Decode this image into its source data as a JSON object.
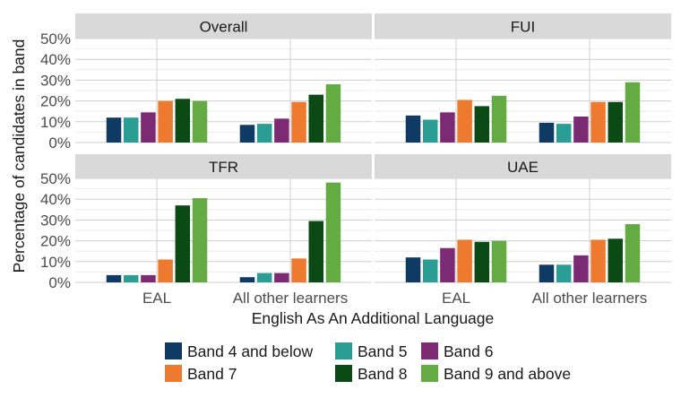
{
  "chart_data": {
    "type": "bar",
    "ylabel": "Percentage of candidates in band",
    "xlabel": "English As An Additional Language",
    "categories": [
      "EAL",
      "All other learners"
    ],
    "y_ticks": [
      "0%",
      "10%",
      "20%",
      "30%",
      "40%",
      "50%"
    ],
    "ylim": [
      0,
      50
    ],
    "grid": true,
    "legend_position": "bottom",
    "series": [
      {
        "name": "Band 4 and below",
        "color": "#0f3a63"
      },
      {
        "name": "Band 5",
        "color": "#2a9d95"
      },
      {
        "name": "Band 6",
        "color": "#7b2a73"
      },
      {
        "name": "Band 7",
        "color": "#ee7a30"
      },
      {
        "name": "Band 8",
        "color": "#0b4a14"
      },
      {
        "name": "Band 9 and above",
        "color": "#64ab43"
      }
    ],
    "panels": [
      {
        "title": "Overall",
        "values": {
          "EAL": [
            12,
            12,
            14.5,
            20,
            21,
            20
          ],
          "All other learners": [
            8.5,
            9,
            11.5,
            19.5,
            23,
            28
          ]
        }
      },
      {
        "title": "FUI",
        "values": {
          "EAL": [
            13,
            11,
            14.5,
            20.5,
            17.5,
            22.5
          ],
          "All other learners": [
            9.5,
            9,
            12.5,
            19.5,
            19.5,
            29
          ]
        }
      },
      {
        "title": "TFR",
        "values": {
          "EAL": [
            3.5,
            3.5,
            3.5,
            11,
            37,
            40.5
          ],
          "All other learners": [
            2.5,
            4.5,
            4.5,
            11.5,
            29.5,
            48
          ]
        }
      },
      {
        "title": "UAE",
        "values": {
          "EAL": [
            12,
            11,
            16.5,
            20.5,
            19.5,
            20
          ],
          "All other learners": [
            8.5,
            8.5,
            13,
            20.5,
            21,
            28
          ]
        }
      }
    ]
  }
}
